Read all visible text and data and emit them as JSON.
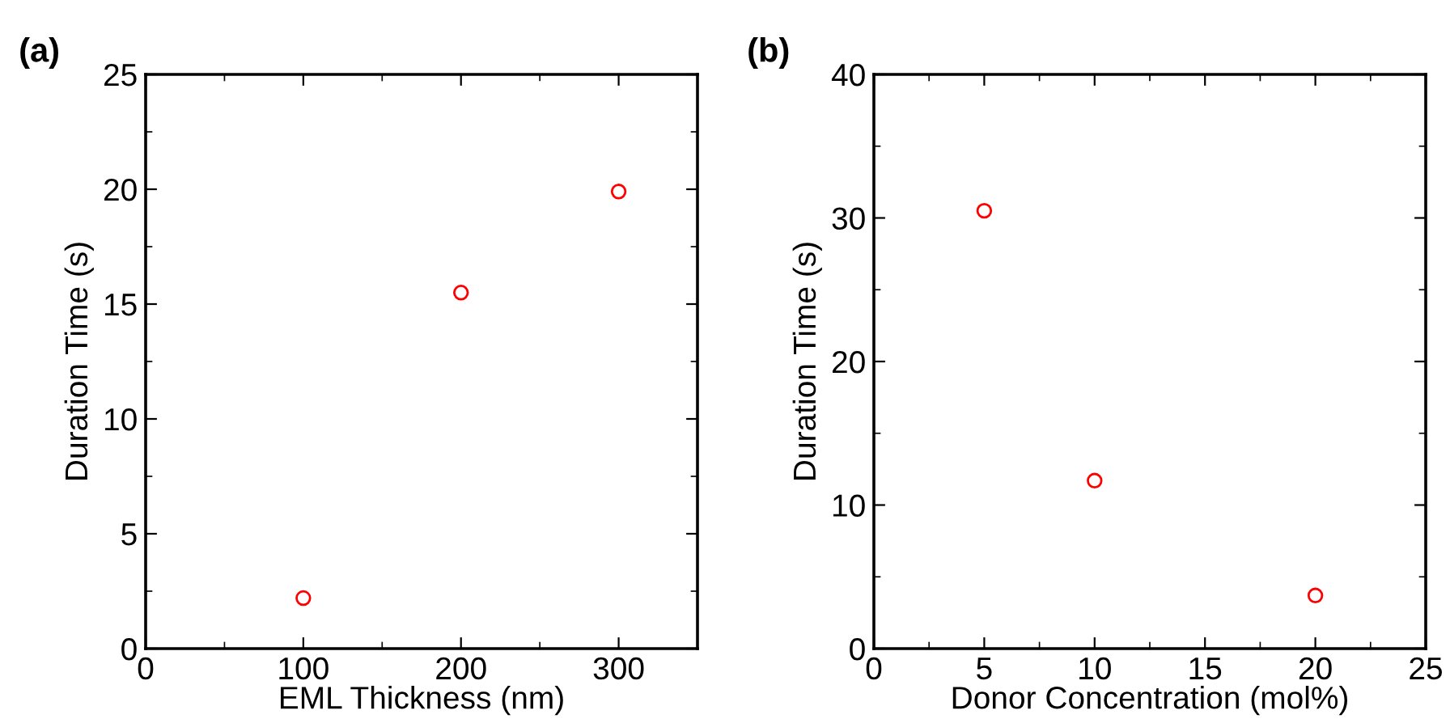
{
  "chart_data": [
    {
      "type": "scatter",
      "title": "(a)",
      "xlabel": "EML Thickness (nm)",
      "ylabel": "Duration Time (s)",
      "x": [
        100,
        200,
        300
      ],
      "series": [
        {
          "color": "#ff0000",
          "values": [
            2.2,
            15.5,
            19.9
          ]
        }
      ],
      "xlim": [
        0,
        350
      ],
      "xticks": [
        0,
        100,
        200,
        300
      ],
      "ylim": [
        0,
        25
      ],
      "yticks": [
        0,
        5,
        10,
        15,
        20,
        25
      ],
      "marker": "circle",
      "grid": false,
      "legend": false
    },
    {
      "type": "scatter",
      "title": "(b)",
      "xlabel": "Donor Concentration (mol%)",
      "ylabel": "Duration Time (s)",
      "x": [
        5,
        10,
        20
      ],
      "series": [
        {
          "color": "#ff0000",
          "values": [
            30.5,
            11.7,
            3.7
          ]
        }
      ],
      "xlim": [
        0,
        25
      ],
      "xticks": [
        0,
        5,
        10,
        15,
        20,
        25
      ],
      "ylim": [
        0,
        40
      ],
      "yticks": [
        0,
        10,
        20,
        30,
        40
      ],
      "marker": "circle",
      "grid": false,
      "legend": false
    }
  ]
}
